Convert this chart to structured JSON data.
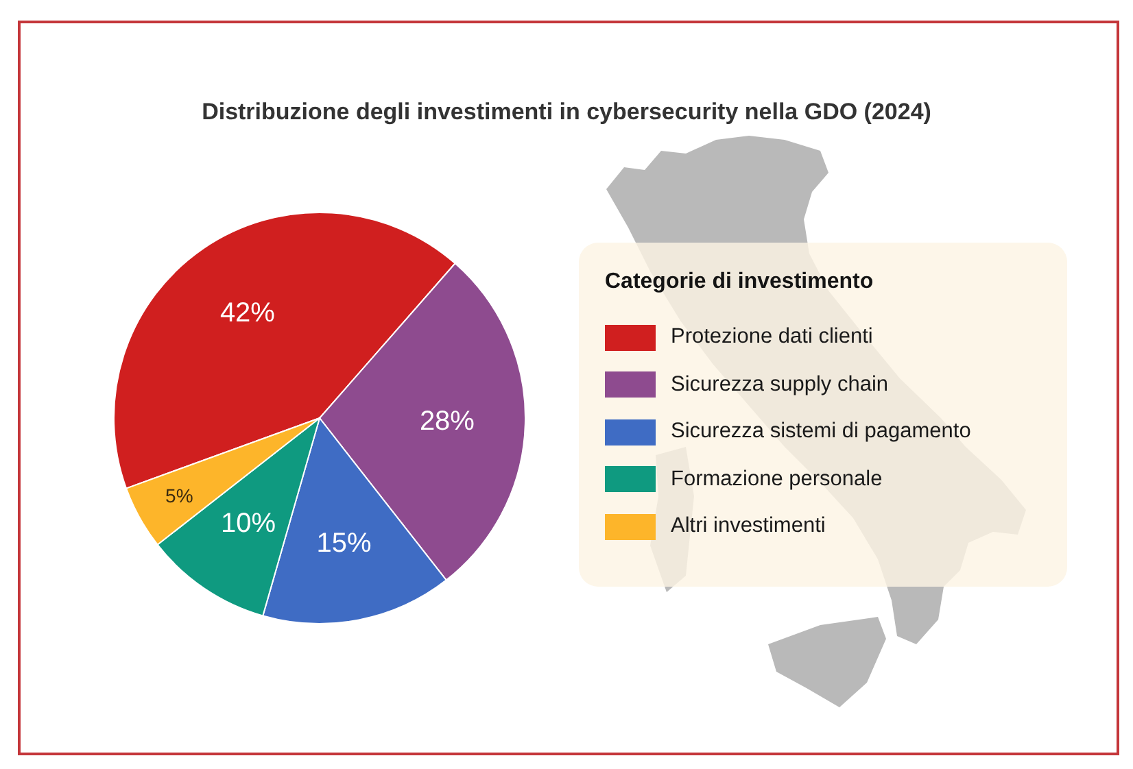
{
  "chart_data": {
    "type": "pie",
    "title": "Distribuzione degli investimenti in cybersecurity nella GDO (2024)",
    "legend_title": "Categorie di investimento",
    "categories": [
      "Protezione dati clienti",
      "Sicurezza supply chain",
      "Sicurezza sistemi di pagamento",
      "Formazione personale",
      "Altri investimenti"
    ],
    "values": [
      42,
      28,
      15,
      10,
      5
    ],
    "colors": [
      "#d01f1f",
      "#8e4b8f",
      "#3f6cc4",
      "#0f9a80",
      "#fdb52a"
    ],
    "value_labels": [
      "42%",
      "28%",
      "15%",
      "10%",
      "5%"
    ],
    "legend": "right"
  }
}
